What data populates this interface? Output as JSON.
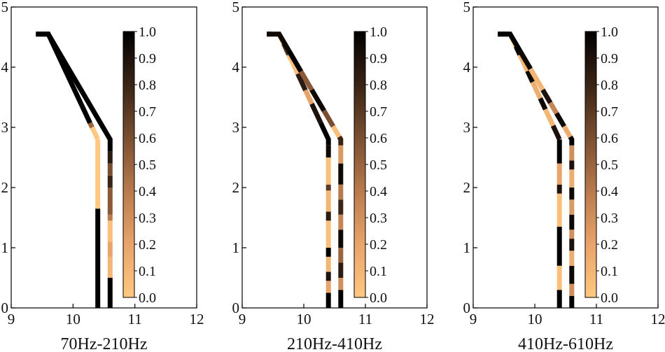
{
  "colormap": {
    "name": "copper_r",
    "stops": [
      "#ffc880",
      "#e8a46a",
      "#b97a4c",
      "#7a4f31",
      "#3a2415",
      "#000000"
    ]
  },
  "chart_data": [
    {
      "type": "heatmap",
      "xlabel": "70Hz-210Hz",
      "xlim": [
        9,
        12
      ],
      "ylim": [
        0,
        5
      ],
      "xticks": [
        9,
        10,
        11,
        12
      ],
      "yticks": [
        0,
        1,
        2,
        3,
        4,
        5
      ],
      "colorbar": {
        "min": 0.0,
        "max": 1.0,
        "ticks": [
          "0.0",
          "0.1",
          "0.2",
          "0.3",
          "0.4",
          "0.5",
          "0.6",
          "0.7",
          "0.8",
          "0.9",
          "1.0"
        ]
      },
      "paths": [
        {
          "name": "left-path",
          "points": [
            [
              10.4,
              0
            ],
            [
              10.4,
              2.8
            ],
            [
              9.6,
              4.55
            ],
            [
              9.4,
              4.55
            ]
          ],
          "segments": [
            [
              0,
              1.65,
              1.0
            ],
            [
              1.65,
              2.8,
              0.0
            ],
            [
              2.8,
              3.02,
              0.0
            ],
            [
              3.02,
              3.1,
              0.5
            ],
            [
              3.1,
              5.3,
              1.0
            ]
          ]
        },
        {
          "name": "right-path",
          "points": [
            [
              10.6,
              0
            ],
            [
              10.6,
              2.8
            ],
            [
              9.6,
              4.55
            ],
            [
              9.4,
              4.55
            ]
          ],
          "segments": [
            [
              0,
              0.5,
              1.0
            ],
            [
              0.5,
              0.85,
              0.1
            ],
            [
              0.85,
              1.1,
              0.2
            ],
            [
              1.1,
              1.45,
              0.05
            ],
            [
              1.45,
              1.55,
              0.4
            ],
            [
              1.55,
              2.0,
              0.55
            ],
            [
              2.0,
              2.2,
              0.8
            ],
            [
              2.2,
              2.4,
              0.6
            ],
            [
              2.4,
              2.6,
              0.85
            ],
            [
              2.6,
              5.3,
              1.0
            ]
          ]
        }
      ]
    },
    {
      "type": "heatmap",
      "xlabel": "210Hz-410Hz",
      "xlim": [
        9,
        12
      ],
      "ylim": [
        0,
        5
      ],
      "xticks": [
        9,
        10,
        11,
        12
      ],
      "yticks": [
        0,
        1,
        2,
        3,
        4,
        5
      ],
      "colorbar": {
        "min": 0.0,
        "max": 1.0,
        "ticks": [
          "0.0",
          "0.1",
          "0.2",
          "0.3",
          "0.4",
          "0.5",
          "0.6",
          "0.7",
          "0.8",
          "0.9",
          "1.0"
        ]
      },
      "paths": [
        {
          "name": "left-path",
          "points": [
            [
              10.4,
              0
            ],
            [
              10.4,
              2.8
            ],
            [
              9.6,
              4.55
            ],
            [
              9.4,
              4.55
            ]
          ],
          "segments": [
            [
              0,
              0.25,
              1.0
            ],
            [
              0.25,
              0.45,
              0.2
            ],
            [
              0.45,
              0.6,
              0.9
            ],
            [
              0.6,
              0.85,
              0.1
            ],
            [
              0.85,
              1.0,
              1.0
            ],
            [
              1.0,
              1.45,
              0.05
            ],
            [
              1.45,
              1.6,
              0.85
            ],
            [
              1.6,
              1.95,
              0.1
            ],
            [
              1.95,
              2.05,
              0.7
            ],
            [
              2.05,
              2.5,
              0.05
            ],
            [
              2.5,
              2.7,
              0.95
            ],
            [
              2.7,
              3.1,
              1.0
            ],
            [
              3.1,
              3.45,
              0.9
            ],
            [
              3.45,
              3.7,
              0.2
            ],
            [
              3.7,
              4.0,
              0.85
            ],
            [
              4.0,
              4.35,
              0.05
            ],
            [
              4.35,
              4.55,
              0.75
            ],
            [
              4.55,
              4.85,
              0.0
            ],
            [
              4.85,
              5.3,
              1.0
            ]
          ]
        },
        {
          "name": "right-path",
          "points": [
            [
              10.6,
              0
            ],
            [
              10.6,
              2.8
            ],
            [
              9.6,
              4.55
            ],
            [
              9.4,
              4.55
            ]
          ],
          "segments": [
            [
              0,
              0.3,
              1.0
            ],
            [
              0.3,
              0.5,
              0.3
            ],
            [
              0.5,
              0.75,
              0.85
            ],
            [
              0.75,
              1.0,
              0.5
            ],
            [
              1.0,
              1.3,
              0.95
            ],
            [
              1.3,
              1.55,
              0.35
            ],
            [
              1.55,
              1.8,
              0.8
            ],
            [
              1.8,
              2.05,
              0.4
            ],
            [
              2.05,
              2.4,
              0.95
            ],
            [
              2.4,
              2.7,
              0.25
            ],
            [
              2.7,
              2.85,
              0.8
            ],
            [
              2.85,
              3.05,
              0.05
            ],
            [
              3.05,
              3.35,
              0.6
            ],
            [
              3.35,
              3.75,
              0.95
            ],
            [
              3.75,
              4.1,
              0.55
            ],
            [
              4.1,
              4.5,
              1.0
            ],
            [
              4.5,
              5.3,
              0.95
            ]
          ]
        }
      ]
    },
    {
      "type": "heatmap",
      "xlabel": "410Hz-610Hz",
      "xlim": [
        9,
        12
      ],
      "ylim": [
        0,
        5
      ],
      "xticks": [
        9,
        10,
        11,
        12
      ],
      "yticks": [
        0,
        1,
        2,
        3,
        4,
        5
      ],
      "colorbar": {
        "min": 0.0,
        "max": 1.0,
        "ticks": [
          "0.0",
          "0.1",
          "0.2",
          "0.3",
          "0.4",
          "0.5",
          "0.6",
          "0.7",
          "0.8",
          "0.9",
          "1.0"
        ]
      },
      "paths": [
        {
          "name": "left-path",
          "points": [
            [
              10.4,
              0
            ],
            [
              10.4,
              2.8
            ],
            [
              9.6,
              4.55
            ],
            [
              9.4,
              4.55
            ]
          ],
          "segments": [
            [
              0,
              0.3,
              1.0
            ],
            [
              0.3,
              0.7,
              0.05
            ],
            [
              0.7,
              1.35,
              1.0
            ],
            [
              1.35,
              1.9,
              0.05
            ],
            [
              1.9,
              2.05,
              0.9
            ],
            [
              2.05,
              2.4,
              0.2
            ],
            [
              2.4,
              2.8,
              1.0
            ],
            [
              2.8,
              3.05,
              0.9
            ],
            [
              3.05,
              3.35,
              0.1
            ],
            [
              3.35,
              3.55,
              0.95
            ],
            [
              3.55,
              3.85,
              0.15
            ],
            [
              3.85,
              4.05,
              0.95
            ],
            [
              4.05,
              4.35,
              0.1
            ],
            [
              4.35,
              4.5,
              0.95
            ],
            [
              4.5,
              4.75,
              0.05
            ],
            [
              4.75,
              5.3,
              1.0
            ]
          ]
        },
        {
          "name": "right-path",
          "points": [
            [
              10.6,
              0
            ],
            [
              10.6,
              2.8
            ],
            [
              9.6,
              4.55
            ],
            [
              9.4,
              4.55
            ]
          ],
          "segments": [
            [
              0,
              0.2,
              1.0
            ],
            [
              0.2,
              0.4,
              0.3
            ],
            [
              0.4,
              0.7,
              0.95
            ],
            [
              0.7,
              0.95,
              0.15
            ],
            [
              0.95,
              1.15,
              0.9
            ],
            [
              1.15,
              1.3,
              0.3
            ],
            [
              1.3,
              1.55,
              0.95
            ],
            [
              1.55,
              1.8,
              0.25
            ],
            [
              1.8,
              2.0,
              0.95
            ],
            [
              2.0,
              2.3,
              0.15
            ],
            [
              2.3,
              2.45,
              0.9
            ],
            [
              2.45,
              2.7,
              0.3
            ],
            [
              2.7,
              2.85,
              1.0
            ],
            [
              2.85,
              3.05,
              0.15
            ],
            [
              3.05,
              3.3,
              0.95
            ],
            [
              3.3,
              3.5,
              0.35
            ],
            [
              3.5,
              3.75,
              0.9
            ],
            [
              3.75,
              4.15,
              0.1
            ],
            [
              4.15,
              4.5,
              0.95
            ],
            [
              4.5,
              5.3,
              1.0
            ]
          ]
        }
      ]
    }
  ]
}
